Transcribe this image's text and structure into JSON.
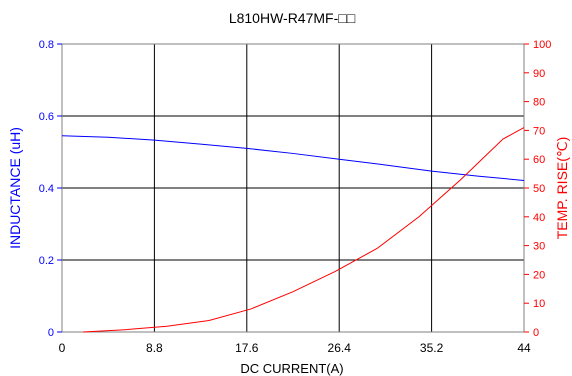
{
  "chart_data": {
    "type": "line",
    "title": "L810HW-R47MF-□□",
    "xlabel": "DC CURRENT(A)",
    "ylabel_left": "INDUCTANCE (uH)",
    "ylabel_right": "TEMP. RISE(℃)",
    "xlim": [
      0,
      44
    ],
    "ylim_left": [
      0,
      0.8
    ],
    "ylim_right": [
      0,
      100
    ],
    "x_ticks": [
      "0",
      "8.8",
      "17.6",
      "26.4",
      "35.2",
      "44"
    ],
    "y_left_ticks": [
      "0",
      "0.2",
      "0.4",
      "0.6",
      "0.8"
    ],
    "y_right_ticks": [
      "0",
      "10",
      "20",
      "30",
      "40",
      "50",
      "60",
      "70",
      "80",
      "90",
      "100"
    ],
    "grid": true,
    "colors": {
      "inductance": "#0000ff",
      "temp_rise": "#ff0000",
      "grid": "#000000",
      "frame": "#808080"
    },
    "series": [
      {
        "axis": "left",
        "color": "#0000ff",
        "x": [
          0,
          4.4,
          8.8,
          13.2,
          17.6,
          22,
          26.4,
          30.8,
          35.2,
          39.6,
          44
        ],
        "values": [
          0.545,
          0.541,
          0.533,
          0.522,
          0.51,
          0.496,
          0.48,
          0.464,
          0.447,
          0.433,
          0.421
        ]
      },
      {
        "axis": "right",
        "color": "#ff0000",
        "x": [
          2,
          6,
          10,
          14,
          18,
          22,
          26,
          30,
          34,
          38,
          42,
          44
        ],
        "values": [
          0,
          0.8,
          2,
          4,
          8,
          14,
          21,
          29,
          40,
          53,
          67,
          71
        ]
      }
    ]
  }
}
